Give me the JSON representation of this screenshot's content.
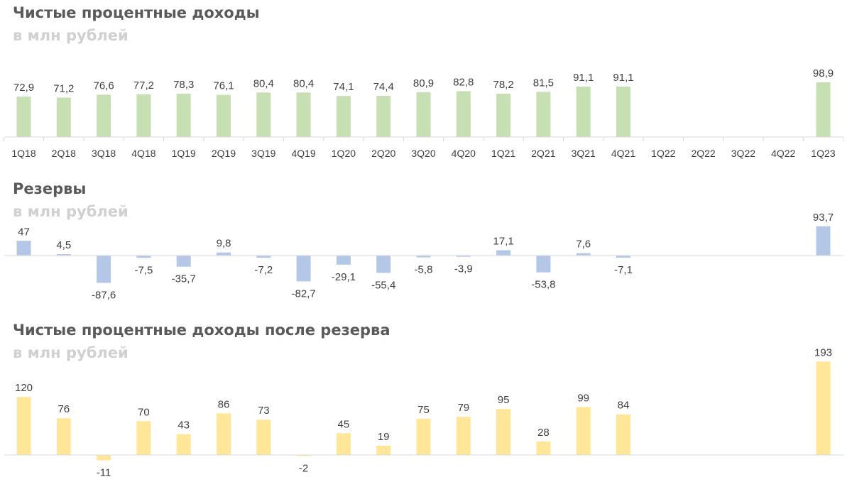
{
  "charts": [
    {
      "title": "Чистые процентные доходы",
      "subtitle": "в млн рублей"
    },
    {
      "title": "Резервы",
      "subtitle": "в млн рублей"
    },
    {
      "title": "Чистые процентные доходы после резерва",
      "subtitle": "в млн рублей"
    }
  ],
  "colors": {
    "bar1": "#c6e0b4",
    "bar2": "#b4c7e7",
    "bar3": "#ffe699",
    "axis": "#d9d9d9",
    "text": "#404040"
  },
  "chart_data": [
    {
      "type": "bar",
      "title": "Чистые процентные доходы",
      "subtitle": "в млн рублей",
      "categories": [
        "1Q18",
        "2Q18",
        "3Q18",
        "4Q18",
        "1Q19",
        "2Q19",
        "3Q19",
        "4Q19",
        "1Q20",
        "2Q20",
        "3Q20",
        "4Q20",
        "1Q21",
        "2Q21",
        "3Q21",
        "4Q21",
        "1Q22",
        "2Q22",
        "3Q22",
        "4Q22",
        "1Q23"
      ],
      "values": [
        72.9,
        71.2,
        76.6,
        77.2,
        78.3,
        76.1,
        80.4,
        80.4,
        74.1,
        74.4,
        80.9,
        82.8,
        78.2,
        81.5,
        91.1,
        91.1,
        null,
        null,
        null,
        null,
        98.9
      ],
      "labels": [
        "72,9",
        "71,2",
        "76,6",
        "77,2",
        "78,3",
        "76,1",
        "80,4",
        "80,4",
        "74,1",
        "74,4",
        "80,9",
        "82,8",
        "78,2",
        "81,5",
        "91,1",
        "91,1",
        "",
        "",
        "",
        "",
        "98,9"
      ],
      "show_category_labels": true
    },
    {
      "type": "bar",
      "title": "Резервы",
      "subtitle": "в млн рублей",
      "categories": [
        "1Q18",
        "2Q18",
        "3Q18",
        "4Q18",
        "1Q19",
        "2Q19",
        "3Q19",
        "4Q19",
        "1Q20",
        "2Q20",
        "3Q20",
        "4Q20",
        "1Q21",
        "2Q21",
        "3Q21",
        "4Q21",
        "1Q22",
        "2Q22",
        "3Q22",
        "4Q22",
        "1Q23"
      ],
      "values": [
        47,
        4.5,
        -87.6,
        -7.5,
        -35.7,
        9.8,
        -7.2,
        -82.7,
        -29.1,
        -55.4,
        -5.8,
        -3.9,
        17.1,
        -53.8,
        7.6,
        -7.1,
        null,
        null,
        null,
        null,
        93.7
      ],
      "labels": [
        "47",
        "4,5",
        "-87,6",
        "-7,5",
        "-35,7",
        "9,8",
        "-7,2",
        "-82,7",
        "-29,1",
        "-55,4",
        "-5,8",
        "-3,9",
        "17,1",
        "-53,8",
        "7,6",
        "-7,1",
        "",
        "",
        "",
        "",
        "93,7"
      ],
      "show_category_labels": false
    },
    {
      "type": "bar",
      "title": "Чистые процентные доходы после резерва",
      "subtitle": "в млн рублей",
      "categories": [
        "1Q18",
        "2Q18",
        "3Q18",
        "4Q18",
        "1Q19",
        "2Q19",
        "3Q19",
        "4Q19",
        "1Q20",
        "2Q20",
        "3Q20",
        "4Q20",
        "1Q21",
        "2Q21",
        "3Q21",
        "4Q21",
        "1Q22",
        "2Q22",
        "3Q22",
        "4Q22",
        "1Q23"
      ],
      "values": [
        120,
        76,
        -11,
        70,
        43,
        86,
        73,
        -2,
        45,
        19,
        75,
        79,
        95,
        28,
        99,
        84,
        null,
        null,
        null,
        null,
        193
      ],
      "labels": [
        "120",
        "76",
        "-11",
        "70",
        "43",
        "86",
        "73",
        "-2",
        "45",
        "19",
        "75",
        "79",
        "95",
        "28",
        "99",
        "84",
        "",
        "",
        "",
        "",
        "193"
      ],
      "show_category_labels": false
    }
  ]
}
